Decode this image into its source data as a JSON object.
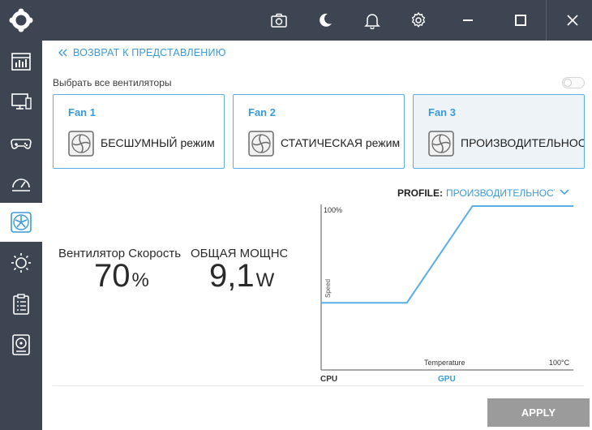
{
  "topbar": {
    "icons": [
      "camera-icon",
      "moon-icon",
      "bell-icon",
      "gear-icon",
      "minimize-icon",
      "maximize-icon",
      "close-icon"
    ]
  },
  "sidebar": {
    "items": [
      "dashboard-icon",
      "monitor-icon",
      "gamepad-icon",
      "performance-gauge-icon",
      "fan-icon",
      "brightness-icon",
      "clipboard-icon",
      "drive-icon"
    ],
    "active": "fan-icon"
  },
  "back_link": "ВОЗВРАТ К ПРЕДСТАВЛЕНИЮ",
  "select_all": {
    "label": "Выбрать все вентиляторы",
    "on": false
  },
  "fans": [
    {
      "title": "Fan 1",
      "mode": "БЕСШУМНЫЙ режим",
      "selected": false
    },
    {
      "title": "Fan 2",
      "mode": "СТАТИЧЕСКАЯ режим",
      "selected": false
    },
    {
      "title": "Fan 3",
      "mode": "ПРОИЗВОДИТЕЛЬНОСТИ",
      "selected": true
    }
  ],
  "profile": {
    "label": "PROFILE:",
    "value": "ПРОИЗВОДИТЕЛЬНОСТИ"
  },
  "stats": {
    "fan_speed_label": "Вентилятор Скорость",
    "fan_speed_value": "70",
    "fan_speed_unit": "%",
    "power_label": "ОБЩАЯ МОЩНОСТЬ",
    "power_value": "9,1",
    "power_unit": "W"
  },
  "graph": {
    "y_max_label": "100%",
    "y_axis_label": "Speed",
    "x_axis_label": "Temperature",
    "x_max_label": "100°C",
    "sources": [
      "CPU",
      "GPU"
    ],
    "active_source": "GPU"
  },
  "chart_data": {
    "type": "line",
    "x": [
      0,
      34,
      60,
      100
    ],
    "y": [
      41,
      41,
      100,
      100
    ],
    "xlabel": "Temperature",
    "ylabel": "Speed",
    "xlim": [
      0,
      100
    ],
    "ylim": [
      0,
      100
    ]
  },
  "apply_label": "APPLY",
  "colors": {
    "accent": "#3a9ad9",
    "chrome": "#3d4552",
    "button_disabled": "#9b9b9b"
  }
}
